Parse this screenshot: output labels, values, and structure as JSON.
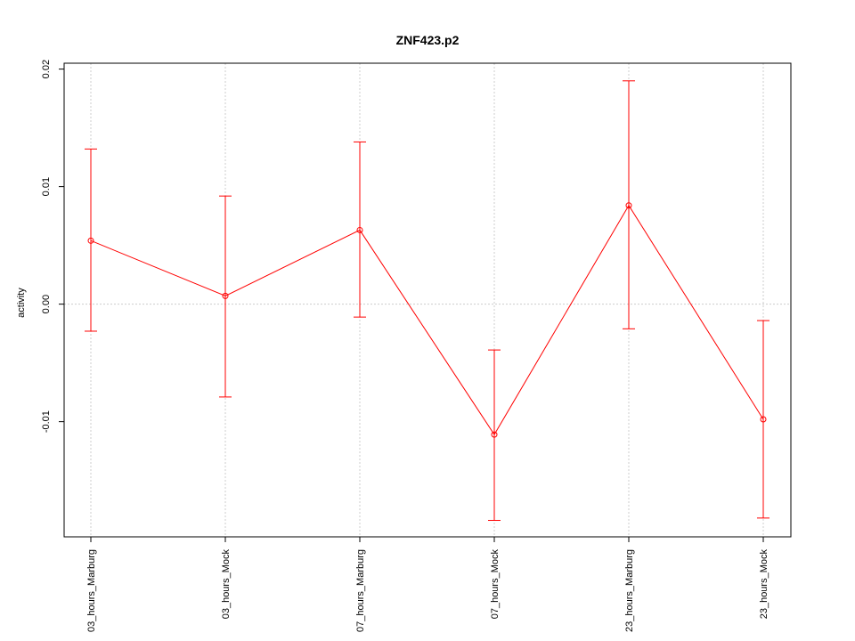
{
  "chart_data": {
    "type": "line",
    "title": "ZNF423.p2",
    "xlabel": "",
    "ylabel": "activity",
    "categories": [
      "03_hours_Marburg",
      "03_hours_Mock",
      "07_hours_Marburg",
      "07_hours_Mock",
      "23_hours_Marburg",
      "23_hours_Mock"
    ],
    "series": [
      {
        "values": [
          0.0054,
          0.0007,
          0.0063,
          -0.0111,
          0.0084,
          -0.0098
        ],
        "error_low": [
          -0.0023,
          -0.0079,
          -0.0011,
          -0.0184,
          -0.0021,
          -0.0182
        ],
        "error_high": [
          0.0132,
          0.0092,
          0.0138,
          -0.0039,
          0.019,
          -0.0014
        ],
        "color": "#ff0000"
      }
    ],
    "yticks": [
      -0.01,
      0.0,
      0.01,
      0.02
    ],
    "ytick_labels": [
      "-0.01",
      "0.00",
      "0.01",
      "0.02"
    ],
    "ylim": [
      -0.0198,
      0.0205
    ],
    "grid": true,
    "grid_color": "#cccccc",
    "axis_color": "#000000"
  }
}
